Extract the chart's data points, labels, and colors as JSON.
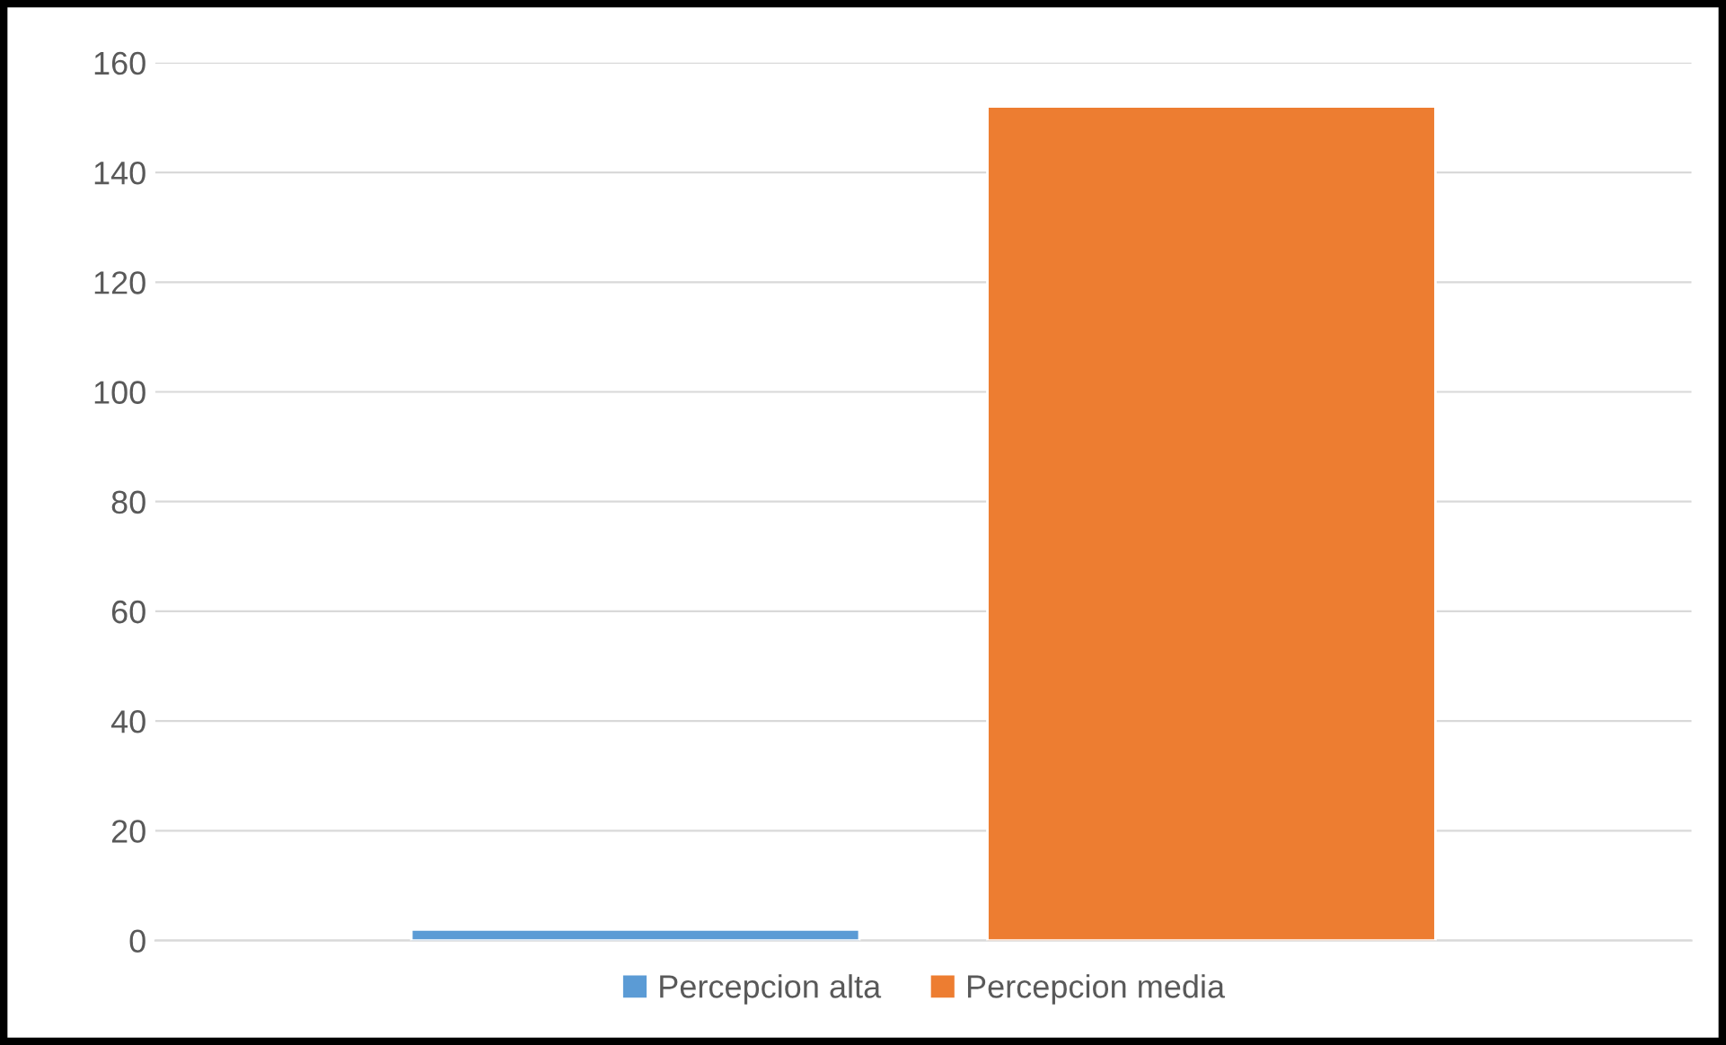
{
  "chart_data": {
    "type": "bar",
    "categories": [
      null
    ],
    "series": [
      {
        "name": "Percepcion alta",
        "color": "#5b9bd5",
        "values": [
          2
        ]
      },
      {
        "name": "Percepcion media",
        "color": "#ed7d31",
        "values": [
          152
        ]
      }
    ],
    "ylim": [
      0,
      160
    ],
    "yticks": [
      0,
      20,
      40,
      60,
      80,
      100,
      120,
      140,
      160
    ],
    "grid": "y",
    "legend": "bottom"
  }
}
